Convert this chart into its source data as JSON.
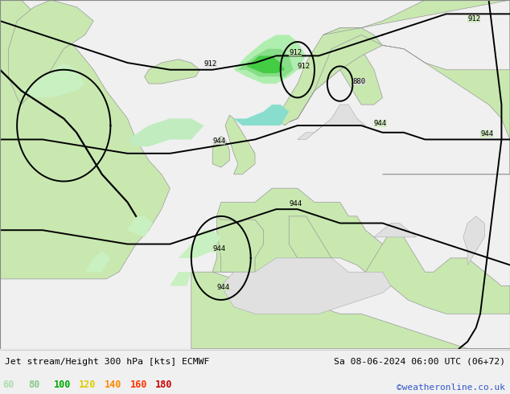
{
  "title_left": "Jet stream/Height 300 hPa [kts] ECMWF",
  "title_right": "Sa 08-06-2024 06:00 UTC (06+72)",
  "credit": "©weatheronline.co.uk",
  "legend_values": [
    60,
    80,
    100,
    120,
    140,
    160,
    180
  ],
  "legend_colors": [
    "#aaddaa",
    "#88cc88",
    "#00aa00",
    "#ddcc00",
    "#ff8800",
    "#ff3300",
    "#cc0000"
  ],
  "bg_color": "#e8e8e8",
  "ocean_color": "#e0e0e0",
  "land_color": "#c8e8b0",
  "bottom_strip_color": "#f0f0f0",
  "contour_lw": 1.4,
  "figsize": [
    6.34,
    4.9
  ],
  "dpi": 100,
  "xlim": [
    -60,
    60
  ],
  "ylim": [
    25,
    75
  ],
  "jet_bands": [
    {
      "color": "#c8f0c0",
      "alpha": 0.85
    },
    {
      "color": "#88dd88",
      "alpha": 0.85
    },
    {
      "color": "#44cc44",
      "alpha": 0.85
    },
    {
      "color": "#00cc88",
      "alpha": 0.85
    }
  ]
}
